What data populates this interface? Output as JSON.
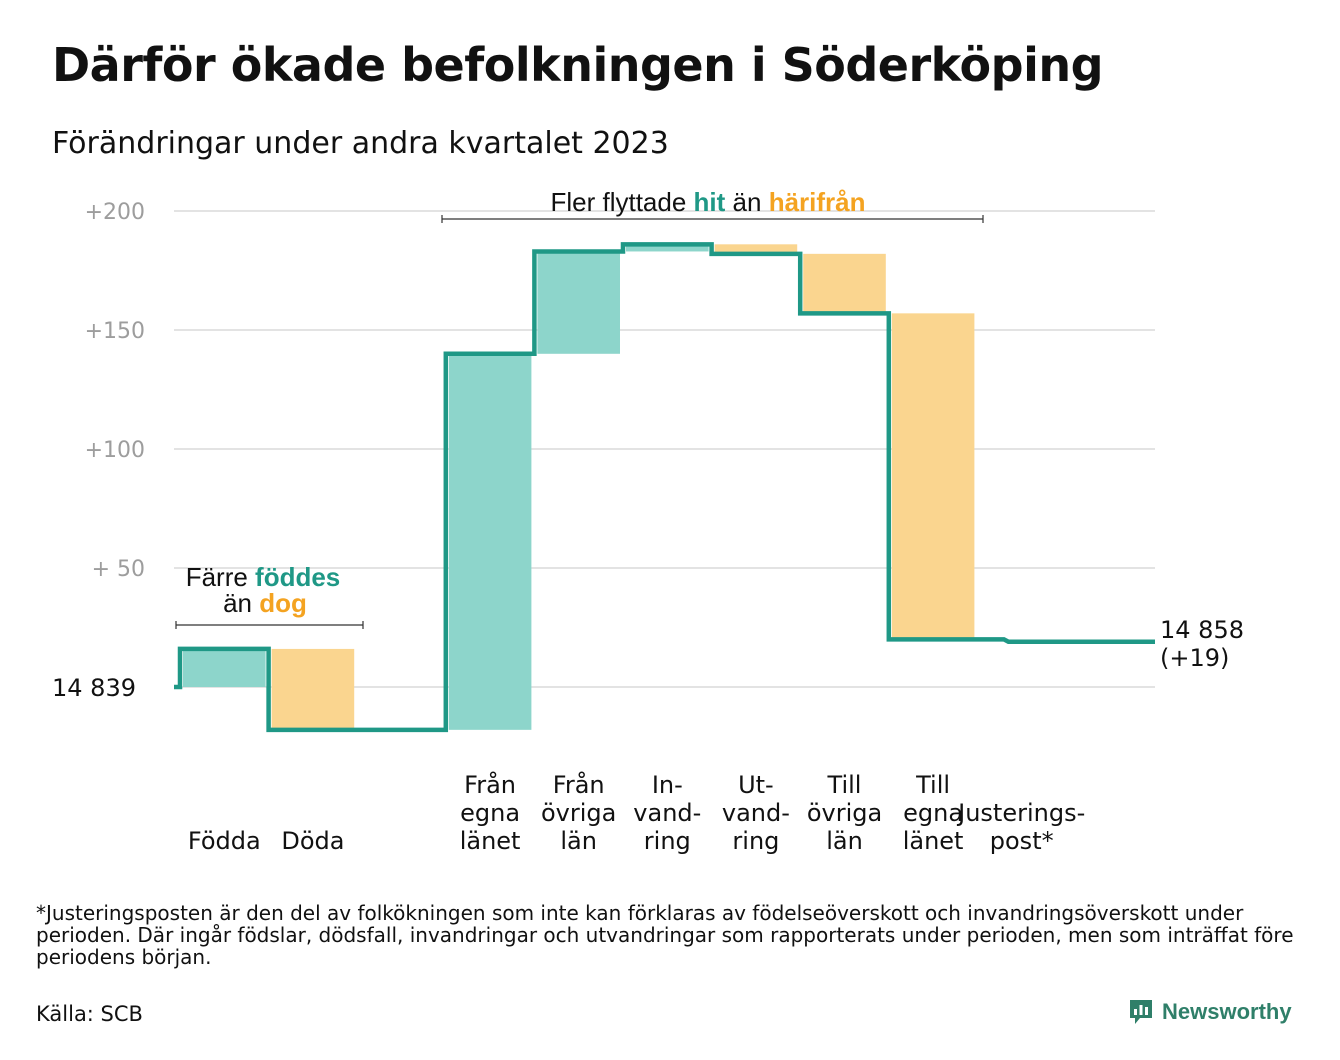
{
  "title": "Därför ökade befolkningen i Söderköping",
  "subtitle": "Förändringar under andra kvartalet 2023",
  "footnote": "*Justeringsposten är den del av folkökningen som inte kan förklaras av födelseöverskott och invandringsöverskott under perioden. Där ingår födslar, dödsfall, invandringar och utvandringar som rapporterats under perioden, men som inträffat före periodens början.",
  "source": "Källa: SCB",
  "brand": {
    "name": "Newsworthy"
  },
  "colors": {
    "increase": "#8dd5cb",
    "decrease": "#fad58f",
    "line": "#1f9886",
    "accent_orange": "#f4a321",
    "grid": "#e3e3e3",
    "tick": "#9d9d9d"
  },
  "chart_data": {
    "type": "waterfall",
    "start_value": 14839,
    "start_label": "14  839",
    "end_value": 14858,
    "end_labels": [
      "14 858",
      "(+19)"
    ],
    "y_ticks": [
      {
        "value": 200,
        "label": "+200"
      },
      {
        "value": 150,
        "label": "+150"
      },
      {
        "value": 100,
        "label": "+100"
      },
      {
        "value": 50,
        "label": "+  50"
      },
      {
        "value": 0,
        "label": ""
      }
    ],
    "ylim": [
      -20,
      200
    ],
    "grid": true,
    "steps": [
      {
        "label_lines": [
          "Födda"
        ],
        "change": 16,
        "kind": "increase"
      },
      {
        "label_lines": [
          "Döda"
        ],
        "change": -34,
        "kind": "decrease"
      },
      {
        "label_lines": [
          ""
        ],
        "change": 0,
        "kind": "none"
      },
      {
        "label_lines": [
          "Från",
          "egna",
          "länet"
        ],
        "change": 158,
        "kind": "increase"
      },
      {
        "label_lines": [
          "Från",
          "övriga",
          "län"
        ],
        "change": 43,
        "kind": "increase"
      },
      {
        "label_lines": [
          "In-",
          "vand-",
          "ring"
        ],
        "change": 3,
        "kind": "increase"
      },
      {
        "label_lines": [
          "Ut-",
          "vand-",
          "ring"
        ],
        "change": -4,
        "kind": "decrease"
      },
      {
        "label_lines": [
          "Till",
          "övriga",
          "län"
        ],
        "change": -25,
        "kind": "decrease"
      },
      {
        "label_lines": [
          "Till",
          "egna",
          "länet"
        ],
        "change": -137,
        "kind": "decrease"
      },
      {
        "label_lines": [
          "Justerings-",
          "post*"
        ],
        "change": -1,
        "kind": "none"
      }
    ],
    "annotations": [
      {
        "segments_line1": [
          {
            "text": "Färre ",
            "style": "plain"
          },
          {
            "text": "föddes",
            "style": "teal"
          }
        ],
        "segments_line2": [
          {
            "text": "än ",
            "style": "plain"
          },
          {
            "text": "dog",
            "style": "orange"
          }
        ]
      },
      {
        "segments_line1": [
          {
            "text": "Fler flyttade ",
            "style": "plain"
          },
          {
            "text": "hit",
            "style": "teal"
          },
          {
            "text": "  än ",
            "style": "plain"
          },
          {
            "text": "härifrån",
            "style": "orange"
          }
        ]
      }
    ]
  }
}
